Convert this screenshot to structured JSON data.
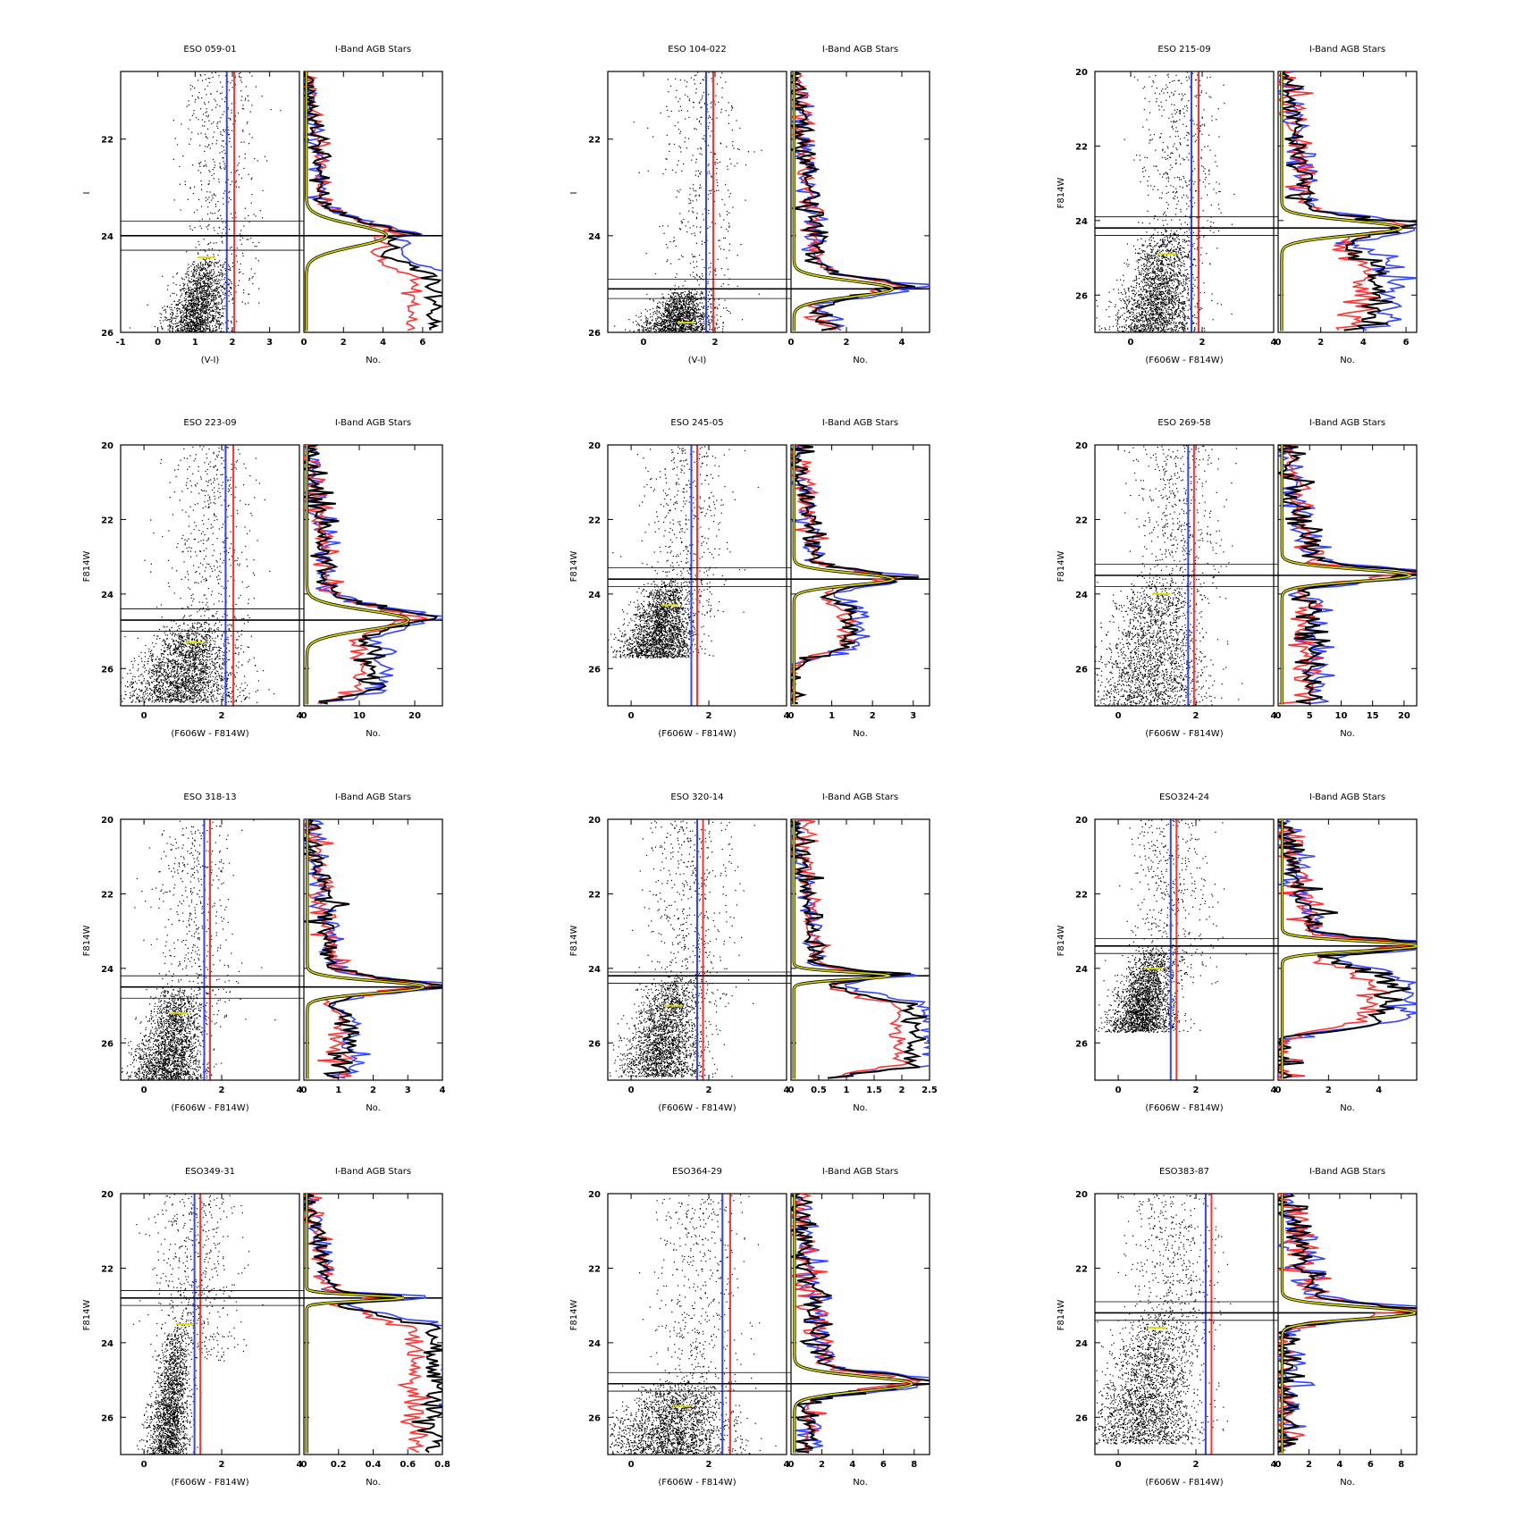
{
  "figure": {
    "hist_title": "I-Band AGB Stars",
    "hist_xlabel": "No."
  },
  "colors": {
    "blue_line": "#3344ff",
    "red_line": "#ff3333",
    "yellow_fit": "#dddd00",
    "black_hist": "#000000"
  },
  "chart_data": [
    {
      "type": "scatter",
      "title": "ESO 059-01",
      "xlabel": "(V-I)",
      "ylabel": "I",
      "xlim": [
        -1,
        3.8
      ],
      "ylim": [
        26,
        20.6
      ],
      "xticks": [
        -1,
        0,
        1,
        2,
        3
      ],
      "yticks": [
        22,
        24,
        26
      ],
      "blue": 1.85,
      "red": 2.05,
      "trgb": 24.0,
      "trgb_err": [
        23.7,
        24.3
      ],
      "tip_mark": {
        "x": 1.3,
        "y": 24.45
      },
      "cloud": {
        "cx": 1.3,
        "top": 24.45,
        "bottom": 26,
        "width": 1.3
      },
      "hist": {
        "xlim": [
          0,
          7
        ],
        "xticks": [
          0,
          2,
          4,
          6
        ],
        "peak": 4.0,
        "tail": 6.5,
        "spread": 0.35
      }
    },
    {
      "type": "scatter",
      "title": "ESO 104-022",
      "xlabel": "(V-I)",
      "ylabel": "I",
      "xlim": [
        -1,
        4
      ],
      "ylim": [
        26,
        20.6
      ],
      "xticks": [
        0,
        2
      ],
      "yticks": [
        22,
        24,
        26
      ],
      "blue": 1.75,
      "red": 1.95,
      "trgb": 25.1,
      "trgb_err": [
        24.9,
        25.3
      ],
      "tip_mark": {
        "x": 1.2,
        "y": 25.8
      },
      "cloud": {
        "cx": 1.2,
        "top": 25.1,
        "bottom": 26,
        "width": 1.6
      },
      "hist": {
        "xlim": [
          0,
          5
        ],
        "xticks": [
          0,
          2,
          4
        ],
        "peak": 3.5,
        "tail": 1.5,
        "spread": 0.25
      }
    },
    {
      "type": "scatter",
      "title": "ESO 215-09",
      "xlabel": "(F606W - F814W)",
      "ylabel": "F814W",
      "xlim": [
        -1,
        4
      ],
      "ylim": [
        27,
        20
      ],
      "xticks": [
        0,
        2,
        4
      ],
      "yticks": [
        20,
        22,
        24,
        26
      ],
      "blue": 1.7,
      "red": 1.9,
      "trgb": 24.2,
      "trgb_err": [
        23.9,
        24.4
      ],
      "tip_mark": {
        "x": 1.0,
        "y": 24.9
      },
      "cloud": {
        "cx": 1.0,
        "top": 24.2,
        "bottom": 26.8,
        "width": 1.8
      },
      "hist": {
        "xlim": [
          0,
          6.5
        ],
        "xticks": [
          0,
          2,
          4,
          6
        ],
        "peak": 5.5,
        "tail": 4.5,
        "spread": 0.3
      }
    },
    {
      "type": "scatter",
      "title": "ESO 223-09",
      "xlabel": "(F606W - F814W)",
      "ylabel": "F814W",
      "xlim": [
        -0.6,
        4
      ],
      "ylim": [
        27,
        20
      ],
      "xticks": [
        0,
        2,
        4
      ],
      "yticks": [
        20,
        22,
        24,
        26
      ],
      "blue": 2.1,
      "red": 2.3,
      "trgb": 24.7,
      "trgb_err": [
        24.4,
        25.0
      ],
      "tip_mark": {
        "x": 1.3,
        "y": 25.3
      },
      "cloud": {
        "cx": 1.3,
        "top": 24.7,
        "bottom": 26.6,
        "width": 2.2
      },
      "hist": {
        "xlim": [
          0,
          25
        ],
        "xticks": [
          0,
          10,
          20
        ],
        "peak": 18,
        "tail": 12,
        "spread": 0.4
      }
    },
    {
      "type": "scatter",
      "title": "ESO 245-05",
      "xlabel": "(F606W - F814W)",
      "ylabel": "F814W",
      "xlim": [
        -0.6,
        4
      ],
      "ylim": [
        27,
        20
      ],
      "xticks": [
        0,
        2,
        4
      ],
      "yticks": [
        20,
        22,
        24,
        26
      ],
      "blue": 1.55,
      "red": 1.7,
      "trgb": 23.6,
      "trgb_err": [
        23.3,
        23.8
      ],
      "tip_mark": {
        "x": 1.0,
        "y": 24.3
      },
      "cloud": {
        "cx": 1.0,
        "top": 23.6,
        "bottom": 25.4,
        "width": 1.5
      },
      "hist": {
        "xlim": [
          0,
          3.4
        ],
        "xticks": [
          0,
          1,
          2,
          3
        ],
        "peak": 2.4,
        "tail": 1.5,
        "spread": 0.25
      }
    },
    {
      "type": "scatter",
      "title": "ESO 269-58",
      "xlabel": "(F606W - F814W)",
      "ylabel": "F814W",
      "xlim": [
        -0.6,
        4
      ],
      "ylim": [
        27,
        20
      ],
      "xticks": [
        0,
        2,
        4
      ],
      "yticks": [
        20,
        22,
        24,
        26
      ],
      "blue": 1.8,
      "red": 1.95,
      "trgb": 23.5,
      "trgb_err": [
        23.2,
        23.8
      ],
      "tip_mark": {
        "x": 1.1,
        "y": 24.0
      },
      "cloud": {
        "cx": 1.1,
        "top": 23.5,
        "bottom": 27,
        "width": 2.4
      },
      "hist": {
        "xlim": [
          0,
          22
        ],
        "xticks": [
          0,
          5,
          10,
          15,
          20
        ],
        "peak": 20,
        "tail": 5,
        "spread": 0.25
      }
    },
    {
      "type": "scatter",
      "title": "ESO 318-13",
      "xlabel": "(F606W - F814W)",
      "ylabel": "F814W",
      "xlim": [
        -0.6,
        4
      ],
      "ylim": [
        27,
        20
      ],
      "xticks": [
        0,
        2,
        4
      ],
      "yticks": [
        20,
        22,
        24,
        26
      ],
      "blue": 1.55,
      "red": 1.7,
      "trgb": 24.5,
      "trgb_err": [
        24.2,
        24.8
      ],
      "tip_mark": {
        "x": 0.9,
        "y": 25.2
      },
      "cloud": {
        "cx": 0.9,
        "top": 24.5,
        "bottom": 26.8,
        "width": 1.5
      },
      "hist": {
        "xlim": [
          0,
          4
        ],
        "xticks": [
          0,
          1,
          2,
          3,
          4
        ],
        "peak": 3.3,
        "tail": 1.2,
        "spread": 0.25
      }
    },
    {
      "type": "scatter",
      "title": "ESO 320-14",
      "xlabel": "(F606W - F814W)",
      "ylabel": "F814W",
      "xlim": [
        -0.6,
        4
      ],
      "ylim": [
        27,
        20
      ],
      "xticks": [
        0,
        2,
        4
      ],
      "yticks": [
        20,
        22,
        24,
        26
      ],
      "blue": 1.7,
      "red": 1.85,
      "trgb": 24.2,
      "trgb_err": [
        24.1,
        24.4
      ],
      "tip_mark": {
        "x": 1.1,
        "y": 25.0
      },
      "cloud": {
        "cx": 1.1,
        "top": 24.2,
        "bottom": 26.6,
        "width": 1.6
      },
      "hist": {
        "xlim": [
          0,
          2.5
        ],
        "xticks": [
          0,
          0.5,
          1,
          1.5,
          2,
          2.5
        ],
        "peak": 1.7,
        "tail": 2.2,
        "spread": 0.15
      }
    },
    {
      "type": "scatter",
      "title": "ESO324-24",
      "xlabel": "(F606W - F814W)",
      "ylabel": "F814W",
      "xlim": [
        -0.6,
        4
      ],
      "ylim": [
        27,
        20
      ],
      "xticks": [
        0,
        2,
        4
      ],
      "yticks": [
        20,
        22,
        24,
        26
      ],
      "blue": 1.35,
      "red": 1.5,
      "trgb": 23.4,
      "trgb_err": [
        23.2,
        23.6
      ],
      "tip_mark": {
        "x": 0.9,
        "y": 24.0
      },
      "cloud": {
        "cx": 0.9,
        "top": 23.4,
        "bottom": 25.4,
        "width": 1.3
      },
      "hist": {
        "xlim": [
          0,
          5.5
        ],
        "xticks": [
          0,
          2,
          4
        ],
        "peak": 5.3,
        "tail": 4.3,
        "spread": 0.2
      }
    },
    {
      "type": "scatter",
      "title": "ESO349-31",
      "xlabel": "(F606W - F814W)",
      "ylabel": "F814W",
      "xlim": [
        -0.6,
        4
      ],
      "ylim": [
        27,
        20
      ],
      "xticks": [
        0,
        2,
        4
      ],
      "yticks": [
        20,
        22,
        24,
        26
      ],
      "blue": 1.3,
      "red": 1.45,
      "trgb": 22.8,
      "trgb_err": [
        22.6,
        23.0
      ],
      "tip_mark": {
        "x": 1.05,
        "y": 23.5
      },
      "cloud": {
        "cx": 0.9,
        "top": 23.5,
        "bottom": 27,
        "width": 0.9
      },
      "hist": {
        "xlim": [
          0,
          0.8
        ],
        "xticks": [
          0,
          0.2,
          0.4,
          0.6,
          0.8
        ],
        "peak": 0.55,
        "tail": 0.75,
        "spread": 0.12
      }
    },
    {
      "type": "scatter",
      "title": "ESO364-29",
      "xlabel": "(F606W - F814W)",
      "ylabel": "F814W",
      "xlim": [
        -0.6,
        4
      ],
      "ylim": [
        27,
        20
      ],
      "xticks": [
        0,
        2,
        4
      ],
      "yticks": [
        20,
        22,
        24,
        26
      ],
      "blue": 2.35,
      "red": 2.55,
      "trgb": 25.1,
      "trgb_err": [
        24.8,
        25.3
      ],
      "tip_mark": {
        "x": 1.3,
        "y": 25.7
      },
      "cloud": {
        "cx": 1.3,
        "top": 25.0,
        "bottom": 26.8,
        "width": 2.6
      },
      "hist": {
        "xlim": [
          0,
          9
        ],
        "xticks": [
          0,
          2,
          4,
          6,
          8
        ],
        "peak": 7.5,
        "tail": 1.2,
        "spread": 0.3
      }
    },
    {
      "type": "scatter",
      "title": "ESO383-87",
      "xlabel": "(F606W - F814W)",
      "ylabel": "F814W",
      "xlim": [
        -0.6,
        4
      ],
      "ylim": [
        27,
        20
      ],
      "xticks": [
        0,
        2,
        4
      ],
      "yticks": [
        20,
        22,
        24,
        26
      ],
      "blue": 2.25,
      "red": 2.4,
      "trgb": 23.2,
      "trgb_err": [
        22.9,
        23.4
      ],
      "tip_mark": {
        "x": 1.0,
        "y": 23.6
      },
      "cloud": {
        "cx": 1.0,
        "top": 23.2,
        "bottom": 26.4,
        "width": 2.2
      },
      "hist": {
        "xlim": [
          0,
          9
        ],
        "xticks": [
          0,
          2,
          4,
          6,
          8
        ],
        "peak": 8.5,
        "tail": 0.5,
        "spread": 0.25
      }
    }
  ]
}
